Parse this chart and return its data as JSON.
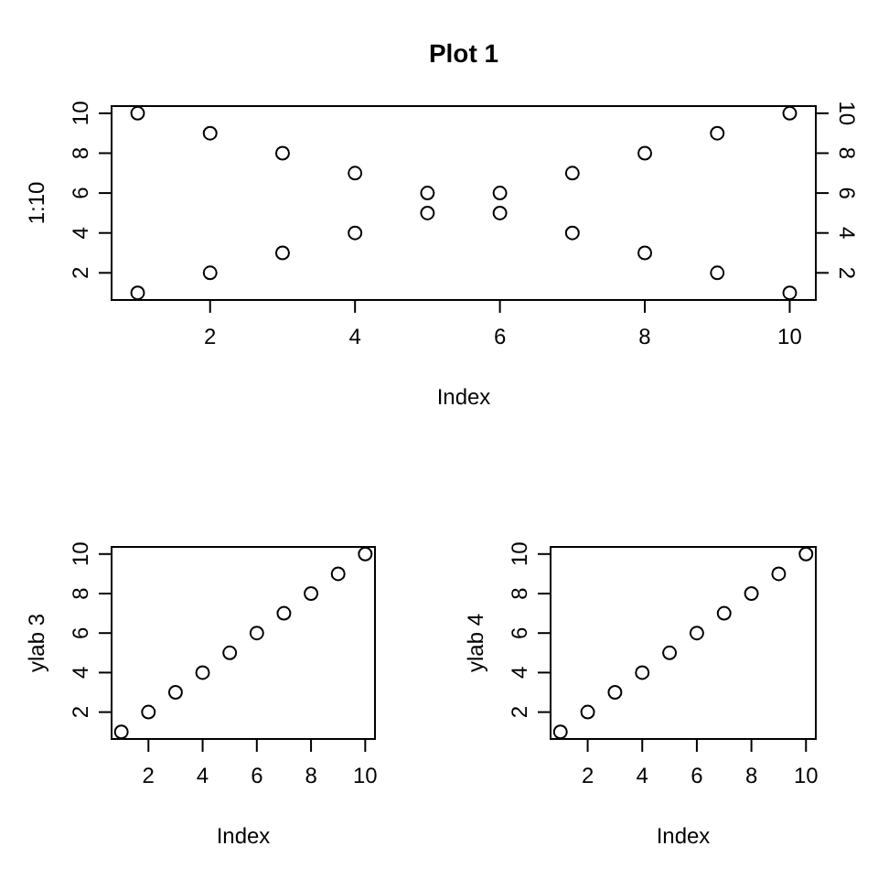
{
  "chart_data": [
    {
      "type": "scatter",
      "title": "Plot 1",
      "xlabel": "Index",
      "ylabel": "1:10",
      "x": [
        1,
        2,
        3,
        4,
        5,
        6,
        7,
        8,
        9,
        10
      ],
      "xlim": [
        0.64,
        10.36
      ],
      "xticks": [
        2,
        4,
        6,
        8,
        10
      ],
      "ylim": [
        0.64,
        10.36
      ],
      "yticks": [
        2,
        4,
        6,
        8,
        10
      ],
      "y2lim": [
        0.64,
        10.36
      ],
      "y2ticks": [
        2,
        4,
        6,
        8,
        10
      ],
      "marker": "circle",
      "series": [
        {
          "color": "#000000",
          "values": [
            1,
            2,
            3,
            4,
            5,
            6,
            7,
            8,
            9,
            10
          ]
        },
        {
          "color": "#000000",
          "values": [
            10,
            9,
            8,
            7,
            6,
            5,
            4,
            3,
            2,
            1
          ]
        }
      ]
    },
    {
      "type": "scatter",
      "xlabel": "Index",
      "ylabel": "ylab 3",
      "x": [
        1,
        2,
        3,
        4,
        5,
        6,
        7,
        8,
        9,
        10
      ],
      "xlim": [
        0.64,
        10.36
      ],
      "xticks": [
        2,
        4,
        6,
        8,
        10
      ],
      "ylim": [
        0.64,
        10.36
      ],
      "yticks": [
        2,
        4,
        6,
        8,
        10
      ],
      "marker": "circle",
      "series": [
        {
          "color": "#000000",
          "values": [
            1,
            2,
            3,
            4,
            5,
            6,
            7,
            8,
            9,
            10
          ]
        }
      ]
    },
    {
      "type": "scatter",
      "xlabel": "Index",
      "ylabel": "ylab 4",
      "x": [
        1,
        2,
        3,
        4,
        5,
        6,
        7,
        8,
        9,
        10
      ],
      "xlim": [
        0.64,
        10.36
      ],
      "xticks": [
        2,
        4,
        6,
        8,
        10
      ],
      "ylim": [
        0.64,
        10.36
      ],
      "yticks": [
        2,
        4,
        6,
        8,
        10
      ],
      "marker": "circle",
      "series": [
        {
          "color": "#000000",
          "values": [
            1,
            2,
            3,
            4,
            5,
            6,
            7,
            8,
            9,
            10
          ]
        }
      ]
    }
  ]
}
